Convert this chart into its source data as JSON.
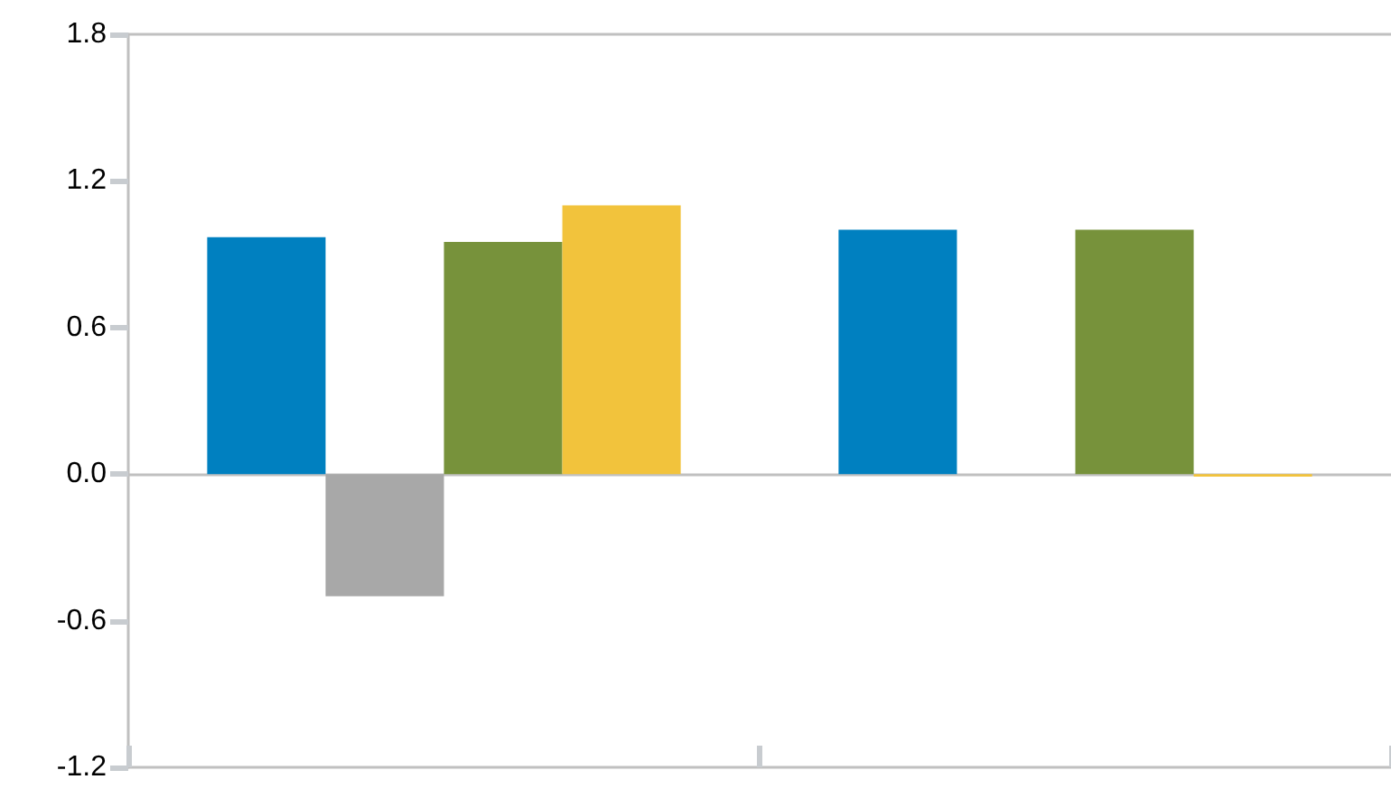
{
  "chart_data": {
    "type": "bar",
    "categories": [
      null,
      null
    ],
    "series": [
      {
        "color": "#0080c0",
        "values": [
          0.97,
          1.0
        ]
      },
      {
        "color": "#a8a8a8",
        "values": [
          -0.5,
          null
        ]
      },
      {
        "color": "#77923b",
        "values": [
          0.95,
          1.0
        ]
      },
      {
        "color": "#f2c33c",
        "values": [
          1.1,
          -0.01
        ]
      }
    ],
    "ylim": [
      -1.2,
      1.8
    ],
    "yticks": [
      {
        "value": -1.2,
        "label": "-1.2"
      },
      {
        "value": -0.6,
        "label": "-0.6"
      },
      {
        "value": 0,
        "label": "0.0"
      },
      {
        "value": 0.6,
        "label": "0.6"
      },
      {
        "value": 1.2,
        "label": "1.2"
      },
      {
        "value": 1.8,
        "label": "1.8"
      }
    ],
    "tick_labels": "y"
  }
}
